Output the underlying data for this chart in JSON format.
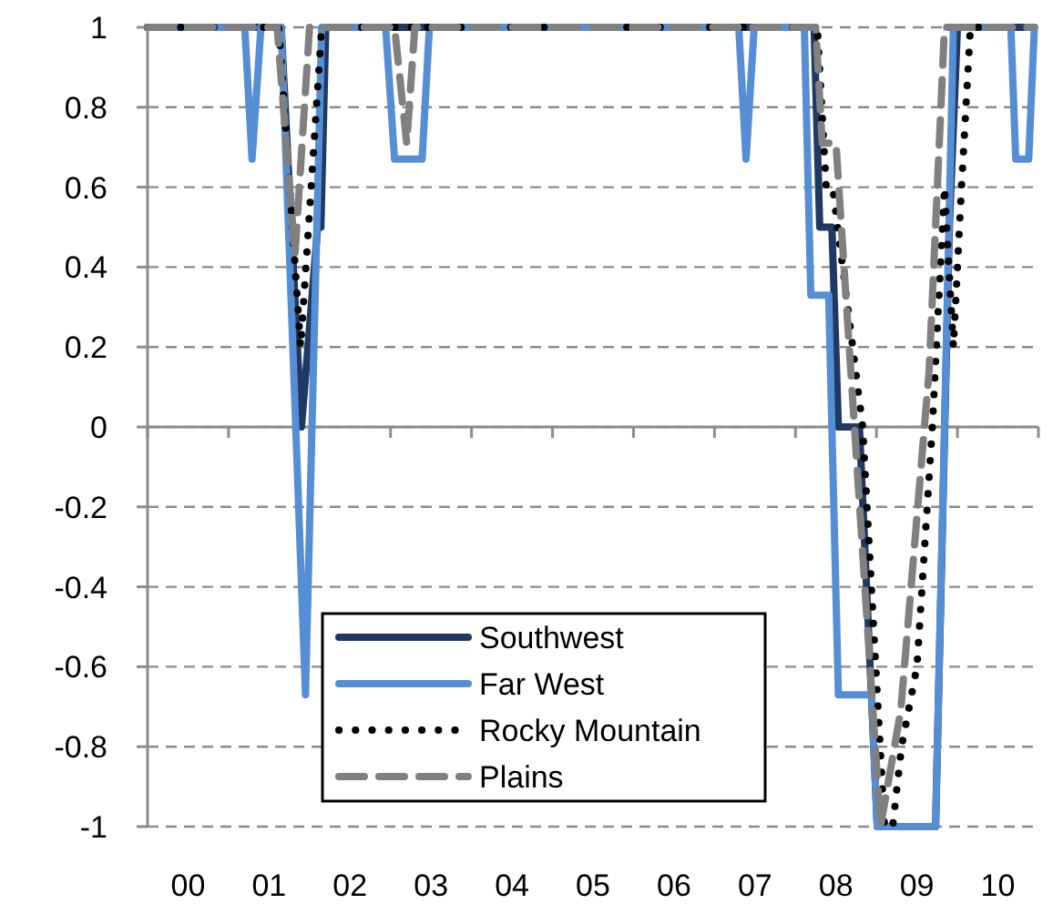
{
  "chart_data": {
    "type": "line",
    "xlim": [
      -0.5,
      10.5
    ],
    "xticks": [
      {
        "value": 0,
        "label": "00"
      },
      {
        "value": 1,
        "label": "01"
      },
      {
        "value": 2,
        "label": "02"
      },
      {
        "value": 3,
        "label": "03"
      },
      {
        "value": 4,
        "label": "04"
      },
      {
        "value": 5,
        "label": "05"
      },
      {
        "value": 6,
        "label": "06"
      },
      {
        "value": 7,
        "label": "07"
      },
      {
        "value": 8,
        "label": "08"
      },
      {
        "value": 9,
        "label": "09"
      },
      {
        "value": 10,
        "label": "10"
      }
    ],
    "ylim": [
      -1,
      1
    ],
    "yticks": [
      -1,
      -0.8,
      -0.6,
      -0.4,
      -0.2,
      0,
      0.2,
      0.4,
      0.6,
      0.8,
      1
    ],
    "grid": "y",
    "legend": "bottom",
    "marker": "none",
    "series": [
      {
        "name": "Southwest",
        "color": "#1f3864",
        "line_style": "solid",
        "x": [
          -0.5,
          1.15,
          1.4,
          1.6,
          1.64,
          1.7,
          7.73,
          7.8,
          7.95,
          8.03,
          8.29,
          8.4,
          8.51,
          9.23,
          9.4,
          9.5,
          10.45
        ],
        "values": [
          1,
          1,
          0,
          0.5,
          0.5,
          1,
          1,
          0.5,
          0.5,
          0,
          0,
          -0.5,
          -1,
          -1,
          0.5,
          1,
          1
        ]
      },
      {
        "name": "Far West",
        "color": "#558ed5",
        "line_style": "solid",
        "x": [
          -0.5,
          0.7,
          0.79,
          0.9,
          1.15,
          1.45,
          1.65,
          2.44,
          2.55,
          2.89,
          2.98,
          6.8,
          6.89,
          6.99,
          7.61,
          7.69,
          7.91,
          8.03,
          8.44,
          8.51,
          9.23,
          9.45,
          10.16,
          10.22,
          10.38,
          10.45
        ],
        "values": [
          1,
          1,
          0.67,
          1,
          1,
          -0.67,
          1,
          1,
          0.67,
          0.67,
          1,
          1,
          0.67,
          1,
          1,
          0.33,
          0.33,
          -0.67,
          -0.67,
          -1,
          -1,
          1,
          1,
          0.67,
          0.67,
          1
        ]
      },
      {
        "name": "Rocky Mountain",
        "color": "#000000",
        "line_style": "dotted",
        "x": [
          -0.5,
          1.12,
          1.39,
          1.65,
          7.77,
          7.88,
          7.96,
          8.33,
          8.6,
          8.7,
          8.81,
          9.0,
          9.19,
          9.34,
          9.45,
          9.55,
          9.66,
          10.45
        ],
        "values": [
          1,
          1,
          0.2,
          1,
          1,
          0.6,
          0.6,
          0,
          -1,
          -1,
          -0.8,
          -0.6,
          0,
          0.6,
          0.2,
          0.6,
          1,
          1
        ]
      },
      {
        "name": "Plains",
        "color": "#808080",
        "line_style": "dashed",
        "x": [
          -0.5,
          1.1,
          1.32,
          1.5,
          2.55,
          2.7,
          2.8,
          7.75,
          7.83,
          8.0,
          8.55,
          8.8,
          9.15,
          9.34,
          10.45
        ],
        "values": [
          1,
          1,
          0.43,
          1,
          1,
          0.71,
          1,
          1,
          0.71,
          0.71,
          -1,
          -0.71,
          0.14,
          1,
          1
        ]
      }
    ]
  }
}
